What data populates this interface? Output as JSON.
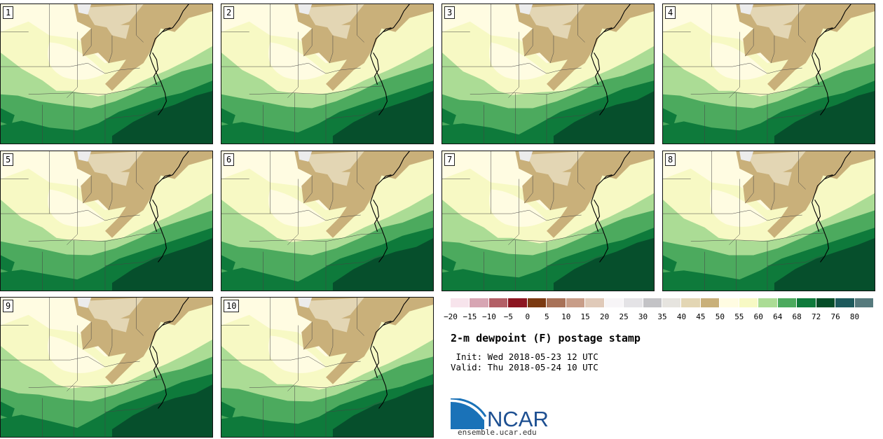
{
  "title": "2-m dewpoint (F) postage stamp",
  "init": " Init: Wed 2018-05-23 12 UTC",
  "valid": "Valid: Thu 2018-05-24 10 UTC",
  "logo": {
    "text": "NCAR",
    "url_text": "ensemble.ucar.edu"
  },
  "members": [
    "1",
    "2",
    "3",
    "4",
    "5",
    "6",
    "7",
    "8",
    "9",
    "10"
  ],
  "colorbar": {
    "tick_labels": [
      "−20",
      "−15",
      "−10",
      "−5",
      "0",
      "5",
      "10",
      "15",
      "20",
      "25",
      "30",
      "35",
      "40",
      "45",
      "50",
      "55",
      "60",
      "64",
      "68",
      "72",
      "76",
      "80"
    ],
    "colors": [
      "#f7e4ec",
      "#d7a5b3",
      "#b35f66",
      "#8c1520",
      "#7b3a12",
      "#a87258",
      "#c89d88",
      "#e0cab9",
      "#f7f5f7",
      "#e4e3e6",
      "#c3c3c6",
      "#e6e4df",
      "#e3d6b4",
      "#c9b07a",
      "#fffce2",
      "#f7f9c4",
      "#abdc95",
      "#4caa5e",
      "#0e7a3b",
      "#044d28",
      "#1d5a5c",
      "#567a7d"
    ]
  },
  "map_colors": {
    "tan": "#c9b07a",
    "light_tan": "#e3d6b4",
    "cream": "#fffce2",
    "light_yellow": "#f7f9c4",
    "light_green": "#abdc95",
    "mid_green": "#4caa5e",
    "dark_green": "#0e7a3b",
    "darkest_green": "#064f2c",
    "lake": "#ececec"
  }
}
